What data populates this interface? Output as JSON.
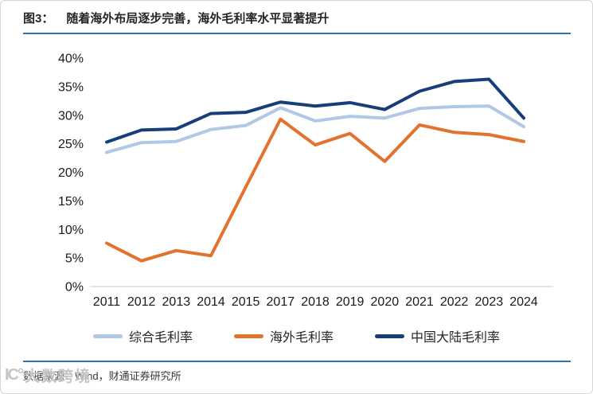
{
  "header": {
    "figure_label": "图3：",
    "title": "随着海外布局逐步完善，海外毛利率水平显著提升",
    "rule_color": "#2e74b5"
  },
  "footer": {
    "source_text": "数据来源：Wind，财通证券研究所",
    "rule_color": "#2e74b5"
  },
  "watermark": {
    "logo": "IC°",
    "text": "大数跨境"
  },
  "chart_data": {
    "type": "line",
    "title": "",
    "xlabel": "",
    "ylabel": "",
    "categories": [
      "2011",
      "2012",
      "2013",
      "2014",
      "2015",
      "2017",
      "2018",
      "2019",
      "2020",
      "2021",
      "2022",
      "2023",
      "2024"
    ],
    "series": [
      {
        "name": "综合毛利率",
        "color": "#b0c7e6",
        "values": [
          23.5,
          25.2,
          25.4,
          27.5,
          28.2,
          31.3,
          29.0,
          29.8,
          29.5,
          31.2,
          31.5,
          31.6,
          28.0
        ]
      },
      {
        "name": "海外毛利率",
        "color": "#e2722e",
        "values": [
          7.6,
          4.5,
          6.3,
          5.4,
          17.4,
          29.3,
          24.8,
          26.8,
          21.9,
          28.3,
          27.0,
          26.6,
          25.4
        ]
      },
      {
        "name": "中国大陆毛利率",
        "color": "#173d7a",
        "values": [
          25.3,
          27.4,
          27.6,
          30.3,
          30.5,
          32.3,
          31.6,
          32.2,
          31.0,
          34.2,
          35.9,
          36.3,
          29.5
        ]
      }
    ],
    "ylim": [
      0,
      40
    ],
    "ytick_step": 5,
    "ytick_suffix": "%",
    "grid": false,
    "legend_position": "bottom",
    "axis_text_color": "#1a1a1a",
    "baseline_color": "#d9d9d9"
  }
}
